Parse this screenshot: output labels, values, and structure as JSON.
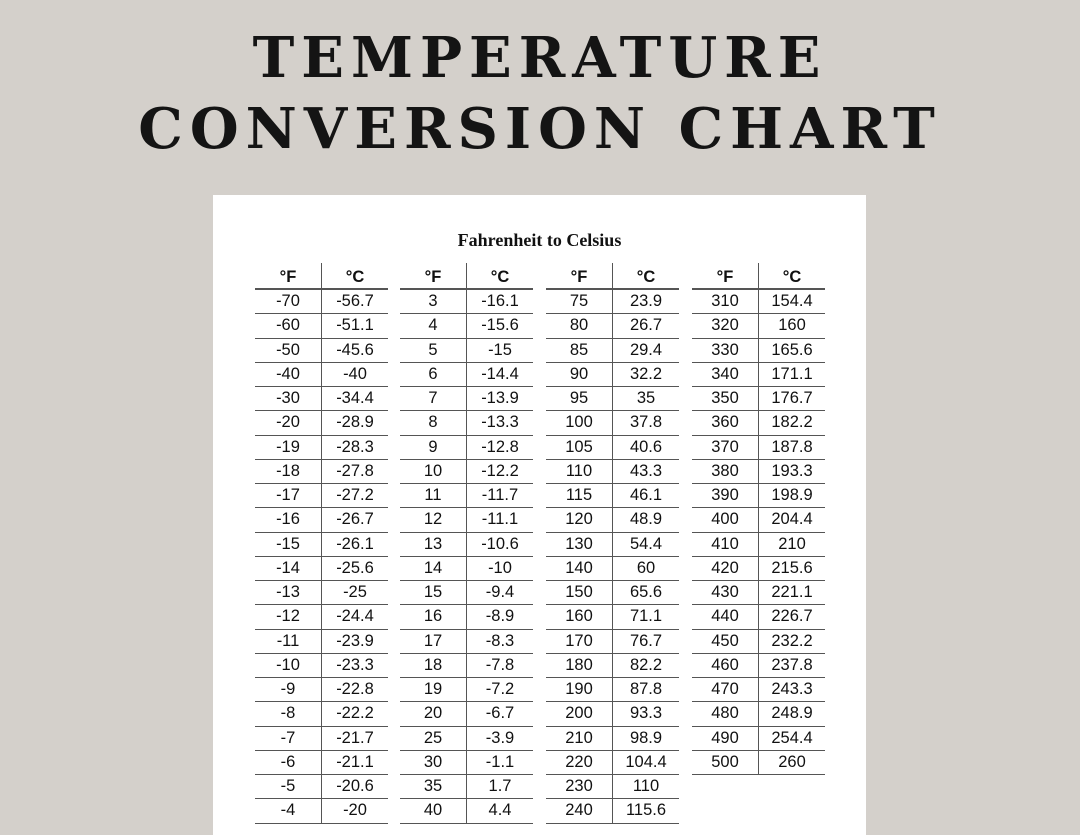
{
  "title": {
    "line1": "TEMPERATURE",
    "line2": "CONVERSION CHART"
  },
  "sheet": {
    "subtitle": "Fahrenheit to Celsius",
    "header": {
      "f": "°F",
      "c": "°C"
    },
    "groups": [
      {
        "rows": [
          [
            "-70",
            "-56.7"
          ],
          [
            "-60",
            "-51.1"
          ],
          [
            "-50",
            "-45.6"
          ],
          [
            "-40",
            "-40"
          ],
          [
            "-30",
            "-34.4"
          ],
          [
            "-20",
            "-28.9"
          ],
          [
            "-19",
            "-28.3"
          ],
          [
            "-18",
            "-27.8"
          ],
          [
            "-17",
            "-27.2"
          ],
          [
            "-16",
            "-26.7"
          ],
          [
            "-15",
            "-26.1"
          ],
          [
            "-14",
            "-25.6"
          ],
          [
            "-13",
            "-25"
          ],
          [
            "-12",
            "-24.4"
          ],
          [
            "-11",
            "-23.9"
          ],
          [
            "-10",
            "-23.3"
          ],
          [
            "-9",
            "-22.8"
          ],
          [
            "-8",
            "-22.2"
          ],
          [
            "-7",
            "-21.7"
          ],
          [
            "-6",
            "-21.1"
          ],
          [
            "-5",
            "-20.6"
          ],
          [
            "-4",
            "-20"
          ]
        ]
      },
      {
        "rows": [
          [
            "3",
            "-16.1"
          ],
          [
            "4",
            "-15.6"
          ],
          [
            "5",
            "-15"
          ],
          [
            "6",
            "-14.4"
          ],
          [
            "7",
            "-13.9"
          ],
          [
            "8",
            "-13.3"
          ],
          [
            "9",
            "-12.8"
          ],
          [
            "10",
            "-12.2"
          ],
          [
            "11",
            "-11.7"
          ],
          [
            "12",
            "-11.1"
          ],
          [
            "13",
            "-10.6"
          ],
          [
            "14",
            "-10"
          ],
          [
            "15",
            "-9.4"
          ],
          [
            "16",
            "-8.9"
          ],
          [
            "17",
            "-8.3"
          ],
          [
            "18",
            "-7.8"
          ],
          [
            "19",
            "-7.2"
          ],
          [
            "20",
            "-6.7"
          ],
          [
            "25",
            "-3.9"
          ],
          [
            "30",
            "-1.1"
          ],
          [
            "35",
            "1.7"
          ],
          [
            "40",
            "4.4"
          ]
        ]
      },
      {
        "rows": [
          [
            "75",
            "23.9"
          ],
          [
            "80",
            "26.7"
          ],
          [
            "85",
            "29.4"
          ],
          [
            "90",
            "32.2"
          ],
          [
            "95",
            "35"
          ],
          [
            "100",
            "37.8"
          ],
          [
            "105",
            "40.6"
          ],
          [
            "110",
            "43.3"
          ],
          [
            "115",
            "46.1"
          ],
          [
            "120",
            "48.9"
          ],
          [
            "130",
            "54.4"
          ],
          [
            "140",
            "60"
          ],
          [
            "150",
            "65.6"
          ],
          [
            "160",
            "71.1"
          ],
          [
            "170",
            "76.7"
          ],
          [
            "180",
            "82.2"
          ],
          [
            "190",
            "87.8"
          ],
          [
            "200",
            "93.3"
          ],
          [
            "210",
            "98.9"
          ],
          [
            "220",
            "104.4"
          ],
          [
            "230",
            "110"
          ],
          [
            "240",
            "115.6"
          ]
        ]
      },
      {
        "rows": [
          [
            "310",
            "154.4"
          ],
          [
            "320",
            "160"
          ],
          [
            "330",
            "165.6"
          ],
          [
            "340",
            "171.1"
          ],
          [
            "350",
            "176.7"
          ],
          [
            "360",
            "182.2"
          ],
          [
            "370",
            "187.8"
          ],
          [
            "380",
            "193.3"
          ],
          [
            "390",
            "198.9"
          ],
          [
            "400",
            "204.4"
          ],
          [
            "410",
            "210"
          ],
          [
            "420",
            "215.6"
          ],
          [
            "430",
            "221.1"
          ],
          [
            "440",
            "226.7"
          ],
          [
            "450",
            "232.2"
          ],
          [
            "460",
            "237.8"
          ],
          [
            "470",
            "243.3"
          ],
          [
            "480",
            "248.9"
          ],
          [
            "490",
            "254.4"
          ],
          [
            "500",
            "260"
          ]
        ]
      }
    ]
  }
}
